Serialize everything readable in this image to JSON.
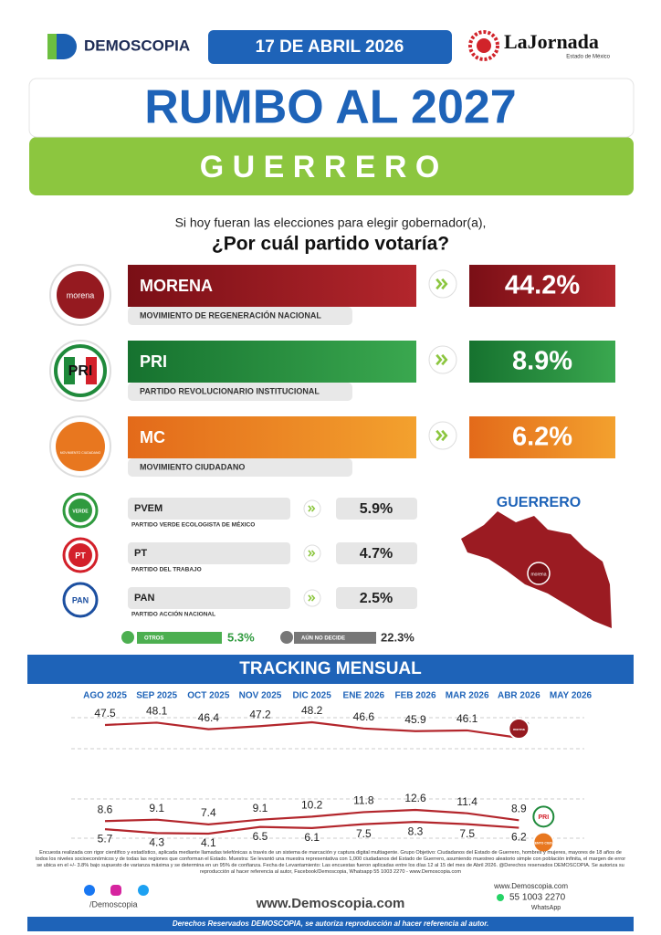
{
  "header": {
    "logo": "DEMOSCOPIA",
    "date": "17 DE ABRIL 2026",
    "partner": "LaJornada",
    "partner_sub": "Estado de México"
  },
  "title": "RUMBO AL 2027",
  "state": "G U E R R E R O",
  "question": {
    "line1": "Si hoy fueran las elecciones para elegir gobernador(a),",
    "line2": "¿Por cuál partido votaría?"
  },
  "main_parties": [
    {
      "logo": "morena",
      "name": "MORENA",
      "full_name": "MOVIMIENTO DE REGENERACIÓN NACIONAL",
      "result": "44.2%",
      "color": "#951a20"
    },
    {
      "logo": "PRI",
      "name": "PRI",
      "full_name": "PARTIDO REVOLUCIONARIO INSTITUCIONAL",
      "result": "8.9%",
      "color": "#1f8a3b"
    },
    {
      "logo": "MOVIMIENTO CIUDADANO",
      "name": "MC",
      "full_name": "MOVIMIENTO CIUDADANO",
      "result": "6.2%",
      "color": "#e8771f"
    }
  ],
  "other_parties": [
    {
      "logo": "VERDE",
      "name": "PVEM",
      "full_name": "PARTIDO VERDE ECOLOGISTA DE MÉXICO",
      "result": "5.9%",
      "color": "#2f9a3e"
    },
    {
      "logo": "PT",
      "name": "PT",
      "full_name": "PARTIDO DEL TRABAJO",
      "result": "4.7%",
      "color": "#d3202a"
    },
    {
      "logo": "PAN",
      "name": "PAN",
      "full_name": "PARTIDO ACCIÓN NACIONAL",
      "result": "2.5%",
      "color": "#1c4fa0"
    }
  ],
  "others": {
    "label": "OTROS",
    "result": "5.3%"
  },
  "undecided": {
    "label": "AÚN NO DECIDE",
    "result": "22.3%"
  },
  "map": {
    "label": "GUERRERO",
    "winner": "morena"
  },
  "tracking": {
    "title": "TRACKING MENSUAL",
    "months": [
      "AGO 2025",
      "SEP 2025",
      "OCT 2025",
      "NOV 2025",
      "DIC 2025",
      "ENE 2026",
      "FEB 2026",
      "MAR 2026",
      "ABR 2026",
      "MAY 2026"
    ],
    "series": [
      {
        "color": "#b3262c",
        "values": [
          47.5,
          48.1,
          46.4,
          47.2,
          48.2,
          46.6,
          45.9,
          46.1,
          44.2,
          null
        ]
      },
      {
        "color": "#b3262c",
        "values": [
          8.6,
          9.1,
          7.4,
          9.1,
          10.2,
          11.8,
          12.6,
          11.4,
          8.9,
          null
        ]
      },
      {
        "color": "#b3262c",
        "values": [
          5.7,
          4.3,
          4.1,
          6.5,
          6.1,
          7.5,
          8.3,
          7.5,
          6.2,
          null
        ]
      }
    ]
  },
  "footer": {
    "methodology": "Encuesta realizada con rigor científico y estadístico, aplicada mediante llamadas telefónicas a través de un sistema de marcación y captura digital multiagente. Grupo Objetivo: Ciudadanos del Estado de Guerrero, hombres y mujeres, mayores de 18 años de todos los niveles socioeconómicos y de todas las regiones que conforman el Estado. Muestra: Se levantó una muestra representativa con 1,000 ciudadanos del Estado de Guerrero, asumiendo muestreo aleatorio simple con población infinita, el margen de error se ubica en el +/- 3.8% bajo supuesto de varianza máxima y se determina en un 95% de confianza. Fecha de Levantamiento: Las encuestas fueron aplicadas entre los días 12 al 15 del mes de Abril 2026. @Derechos reservados DEMOSCOPIA. Se autoriza su reproducción al hacer referencia al autor, Facebook/Demoscopia, Whatsapp 55 1003 2270 - www.Demoscopia.com",
    "handle": "/Demoscopia",
    "website": "www.Demoscopia.com",
    "contact_web": "www.Demoscopia.com",
    "phone": "55 1003 2270",
    "phone_label": "WhatsApp",
    "rights": "Derechos Reservados DEMOSCOPIA, se autoriza reproducción al hacer referencia al autor."
  }
}
